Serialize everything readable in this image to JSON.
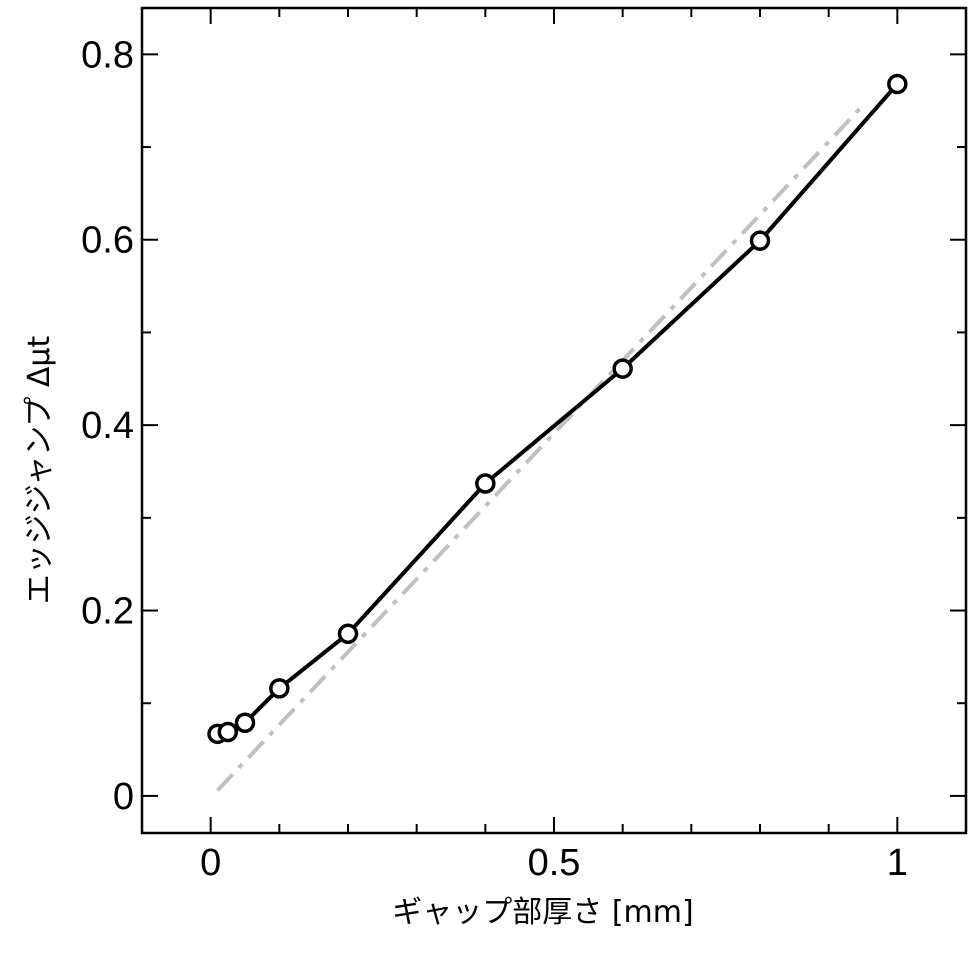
{
  "chart_data": {
    "type": "line",
    "xlabel": "ギャップ部厚さ [mm]",
    "ylabel": "エッジジャンプ Δμt",
    "xlim": [
      -0.1,
      1.1
    ],
    "ylim": [
      -0.04,
      0.85
    ],
    "x_ticks": [
      {
        "value": 0,
        "label": "0"
      },
      {
        "value": 0.5,
        "label": "0.5"
      },
      {
        "value": 1,
        "label": "1"
      }
    ],
    "x_minor_ticks": [
      0.1,
      0.2,
      0.3,
      0.4,
      0.6,
      0.7,
      0.8,
      0.9
    ],
    "y_ticks": [
      {
        "value": 0,
        "label": "0"
      },
      {
        "value": 0.2,
        "label": "0.2"
      },
      {
        "value": 0.4,
        "label": "0.4"
      },
      {
        "value": 0.6,
        "label": "0.6"
      },
      {
        "value": 0.8,
        "label": "0.8"
      }
    ],
    "y_minor_ticks": [
      0.1,
      0.3,
      0.5,
      0.7
    ],
    "grid": false,
    "series": [
      {
        "style": "solid-black-line-open-circle-markers",
        "color": "#000000",
        "x": [
          0.01,
          0.025,
          0.05,
          0.1,
          0.2,
          0.4,
          0.6,
          0.8,
          1.0
        ],
        "y": [
          0.067,
          0.069,
          0.079,
          0.116,
          0.175,
          0.337,
          0.461,
          0.599,
          0.768
        ]
      },
      {
        "style": "dash-dot-gray-fit-line",
        "color": "#c0c0c0",
        "x": [
          0.01,
          0.95
        ],
        "y": [
          0.006,
          0.745
        ]
      }
    ]
  }
}
